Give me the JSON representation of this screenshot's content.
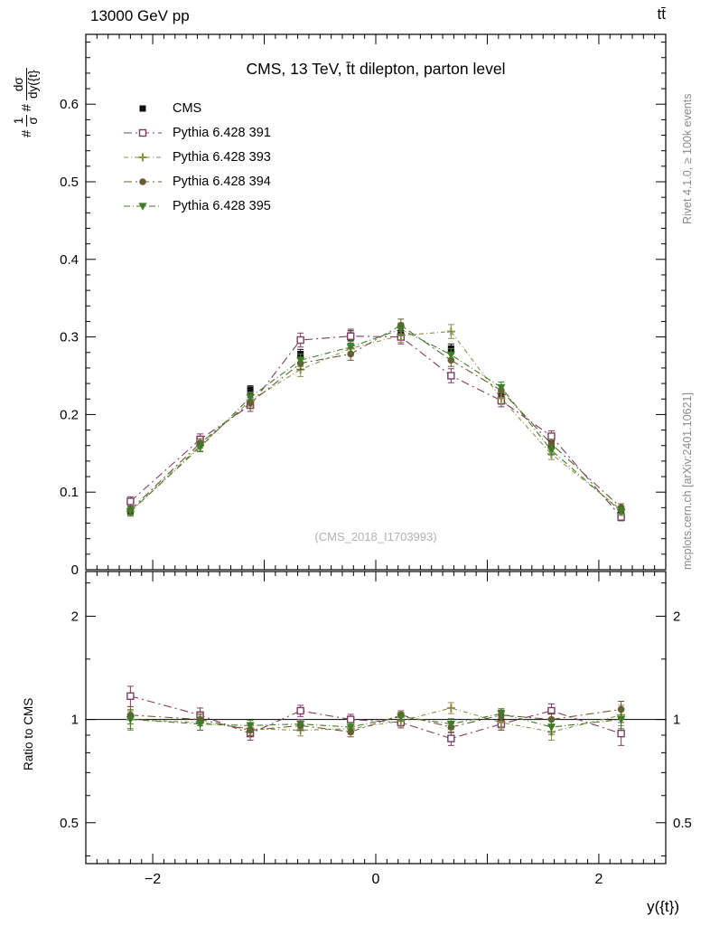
{
  "header": {
    "left": "13000 GeV pp",
    "right": "tt̄"
  },
  "title": "CMS, 13 TeV, t̄t dilepton, parton level",
  "watermark": "(CMS_2018_I1703993)",
  "side_notes": {
    "top_right": "Rivet 4.1.0, ≥ 100k events",
    "bottom_right": "mcplots.cern.ch [arXiv:2401.10621]"
  },
  "axis_labels": {
    "y_main_prefix": "#",
    "y_main_frac1_num": "1",
    "y_main_frac1_den": "σ",
    "y_main_mid": "#",
    "y_main_frac2_num": "dσ",
    "y_main_frac2_den": "dy({t}",
    "y_ratio": "Ratio to CMS",
    "x": "y({t})"
  },
  "chart_data": {
    "type": "line",
    "title": "CMS, 13 TeV, t̄t dilepton, parton level",
    "xlabel": "y({t})",
    "x_centers": [
      -2.2,
      -1.575,
      -1.125,
      -0.675,
      -0.225,
      0.225,
      0.675,
      1.125,
      1.575,
      2.2
    ],
    "xlim": [
      -2.6,
      2.6
    ],
    "x_major_ticks": [
      -2,
      -1,
      0,
      1,
      2
    ],
    "x_labeled_ticks": [
      -2,
      0,
      2
    ],
    "x_minor_step": 0.1,
    "main_panel": {
      "ylabel": "1/σ dσ/dy({t})",
      "ylim": [
        0,
        0.69
      ],
      "yticks": [
        0,
        0.1,
        0.2,
        0.3,
        0.4,
        0.5,
        0.6
      ],
      "y_minor_step": 0.02,
      "series": [
        {
          "name": "CMS",
          "marker": "square-filled",
          "color": "#111111",
          "dash": "none",
          "values": [
            0.075,
            0.163,
            0.232,
            0.278,
            0.302,
            0.305,
            0.285,
            0.225,
            0.162,
            0.075
          ],
          "errors": [
            0.003,
            0.004,
            0.005,
            0.006,
            0.006,
            0.006,
            0.006,
            0.005,
            0.004,
            0.003
          ]
        },
        {
          "name": "Pythia 6.428 391",
          "marker": "square-open",
          "color": "#7d3c63",
          "dash": "9 4 2 4",
          "values": [
            0.088,
            0.168,
            0.212,
            0.296,
            0.301,
            0.3,
            0.25,
            0.218,
            0.172,
            0.068
          ],
          "errors": [
            0.006,
            0.007,
            0.008,
            0.009,
            0.009,
            0.009,
            0.009,
            0.008,
            0.007,
            0.005
          ]
        },
        {
          "name": "Pythia 6.428 393",
          "marker": "plus-open",
          "color": "#8e8e4b",
          "dash": "5 3 1 3",
          "values": [
            0.075,
            0.16,
            0.218,
            0.258,
            0.285,
            0.302,
            0.307,
            0.221,
            0.149,
            0.077
          ],
          "errors": [
            0.006,
            0.007,
            0.008,
            0.009,
            0.009,
            0.009,
            0.009,
            0.008,
            0.007,
            0.005
          ]
        },
        {
          "name": "Pythia 6.428 394",
          "marker": "circle-filled",
          "color": "#6b5a36",
          "dash": "9 4 2 4",
          "values": [
            0.077,
            0.163,
            0.215,
            0.266,
            0.278,
            0.315,
            0.27,
            0.231,
            0.162,
            0.08
          ],
          "errors": [
            0.005,
            0.006,
            0.007,
            0.008,
            0.008,
            0.008,
            0.008,
            0.007,
            0.006,
            0.005
          ]
        },
        {
          "name": "Pythia 6.428 395",
          "marker": "triangle-down-filled",
          "color": "#3f7d28",
          "dash": "7 3 1 3",
          "values": [
            0.075,
            0.158,
            0.222,
            0.27,
            0.287,
            0.31,
            0.277,
            0.235,
            0.154,
            0.075
          ],
          "errors": [
            0.005,
            0.006,
            0.007,
            0.008,
            0.008,
            0.008,
            0.008,
            0.007,
            0.006,
            0.005
          ]
        }
      ]
    },
    "ratio_panel": {
      "ylabel": "Ratio to CMS",
      "yscale": "log",
      "ylim": [
        0.38,
        2.7
      ],
      "yticks": [
        0.5,
        1,
        2
      ],
      "y_minor_ticks": [
        0.4,
        0.6,
        0.7,
        0.8,
        0.9,
        1.5,
        2.5
      ],
      "reference": 1,
      "series": [
        {
          "name": "Pythia 6.428 391",
          "marker": "square-open",
          "color": "#7d3c63",
          "dash": "9 4 2 4",
          "values": [
            1.17,
            1.03,
            0.91,
            1.06,
            1.0,
            0.98,
            0.88,
            0.97,
            1.06,
            0.91
          ],
          "errors": [
            0.08,
            0.05,
            0.04,
            0.04,
            0.035,
            0.035,
            0.04,
            0.04,
            0.05,
            0.07
          ]
        },
        {
          "name": "Pythia 6.428 393",
          "marker": "plus-open",
          "color": "#8e8e4b",
          "dash": "5 3 1 3",
          "values": [
            1.0,
            0.98,
            0.94,
            0.93,
            0.94,
            0.99,
            1.08,
            0.98,
            0.92,
            1.03
          ],
          "errors": [
            0.07,
            0.05,
            0.04,
            0.035,
            0.035,
            0.035,
            0.04,
            0.04,
            0.05,
            0.07
          ]
        },
        {
          "name": "Pythia 6.428 394",
          "marker": "circle-filled",
          "color": "#6b5a36",
          "dash": "9 4 2 4",
          "values": [
            1.03,
            1.0,
            0.93,
            0.96,
            0.92,
            1.03,
            0.95,
            1.03,
            1.0,
            1.07
          ],
          "errors": [
            0.06,
            0.04,
            0.035,
            0.03,
            0.03,
            0.03,
            0.035,
            0.035,
            0.045,
            0.06
          ]
        },
        {
          "name": "Pythia 6.428 395",
          "marker": "triangle-down-filled",
          "color": "#3f7d28",
          "dash": "7 3 1 3",
          "values": [
            1.0,
            0.97,
            0.96,
            0.97,
            0.95,
            1.02,
            0.97,
            1.04,
            0.95,
            1.0
          ],
          "errors": [
            0.06,
            0.04,
            0.035,
            0.03,
            0.03,
            0.03,
            0.035,
            0.035,
            0.045,
            0.06
          ]
        }
      ]
    }
  }
}
